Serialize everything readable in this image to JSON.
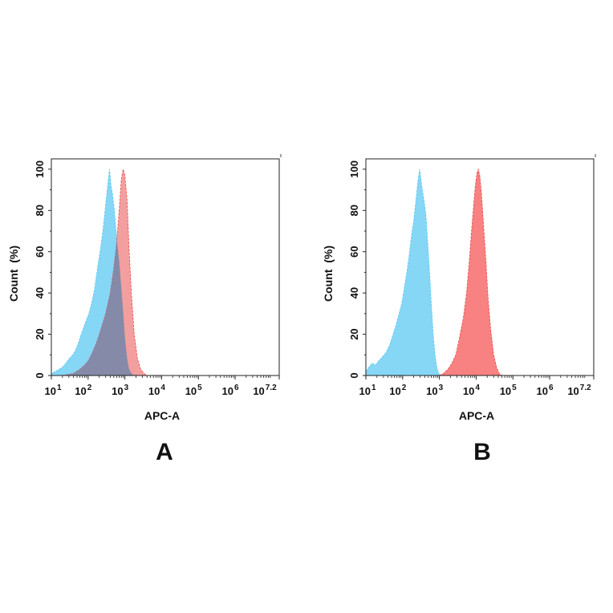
{
  "chart_data": [
    {
      "type": "area",
      "panel_label": "A",
      "xlabel": "APC-A",
      "ylabel": "Count  (%)",
      "x_scale": "log",
      "xlim": [
        10,
        15848932
      ],
      "ylim": [
        0,
        105
      ],
      "x_ticks": [
        {
          "base": "10",
          "exp": "1",
          "value": 10
        },
        {
          "base": "10",
          "exp": "2",
          "value": 100
        },
        {
          "base": "10",
          "exp": "3",
          "value": 1000
        },
        {
          "base": "10",
          "exp": "4",
          "value": 10000
        },
        {
          "base": "10",
          "exp": "5",
          "value": 100000
        },
        {
          "base": "10",
          "exp": "6",
          "value": 1000000
        },
        {
          "base": "10",
          "exp": "7.2",
          "value": 15848932
        }
      ],
      "y_ticks": [
        "0",
        "20",
        "40",
        "60",
        "80",
        "100"
      ],
      "y_tick_values": [
        0,
        20,
        40,
        60,
        80,
        100
      ],
      "grid": false,
      "series": [
        {
          "color": "#5bc8f0",
          "fill": "#7fd4f5",
          "points": [
            [
              10,
              1
            ],
            [
              13,
              2
            ],
            [
              16,
              3
            ],
            [
              20,
              4
            ],
            [
              25,
              6
            ],
            [
              30,
              8
            ],
            [
              38,
              10
            ],
            [
              45,
              12
            ],
            [
              55,
              16
            ],
            [
              65,
              20
            ],
            [
              78,
              24
            ],
            [
              90,
              27
            ],
            [
              105,
              30
            ],
            [
              125,
              35
            ],
            [
              150,
              42
            ],
            [
              180,
              52
            ],
            [
              220,
              62
            ],
            [
              260,
              72
            ],
            [
              300,
              83
            ],
            [
              340,
              92
            ],
            [
              380,
              100
            ],
            [
              420,
              92
            ],
            [
              460,
              88
            ],
            [
              520,
              80
            ],
            [
              600,
              66
            ],
            [
              700,
              55
            ],
            [
              800,
              42
            ],
            [
              900,
              30
            ],
            [
              1000,
              18
            ],
            [
              1150,
              8
            ],
            [
              1300,
              3
            ],
            [
              1500,
              1
            ],
            [
              1800,
              0
            ]
          ]
        },
        {
          "color": "#e84a4a",
          "fill": "#f07a7a",
          "points": [
            [
              20,
              0
            ],
            [
              40,
              1
            ],
            [
              60,
              3
            ],
            [
              80,
              5
            ],
            [
              100,
              7
            ],
            [
              130,
              11
            ],
            [
              170,
              16
            ],
            [
              220,
              22
            ],
            [
              300,
              30
            ],
            [
              400,
              40
            ],
            [
              500,
              52
            ],
            [
              600,
              65
            ],
            [
              700,
              80
            ],
            [
              800,
              95
            ],
            [
              900,
              100
            ],
            [
              1000,
              97
            ],
            [
              1150,
              85
            ],
            [
              1300,
              62
            ],
            [
              1500,
              40
            ],
            [
              1800,
              20
            ],
            [
              2200,
              8
            ],
            [
              2700,
              3
            ],
            [
              3300,
              1
            ],
            [
              4000,
              0
            ]
          ]
        }
      ]
    },
    {
      "type": "area",
      "panel_label": "B",
      "xlabel": "APC-A",
      "ylabel": "Count  (%)",
      "x_scale": "log",
      "xlim": [
        10,
        15848932
      ],
      "ylim": [
        0,
        105
      ],
      "x_ticks": [
        {
          "base": "10",
          "exp": "1",
          "value": 10
        },
        {
          "base": "10",
          "exp": "2",
          "value": 100
        },
        {
          "base": "10",
          "exp": "3",
          "value": 1000
        },
        {
          "base": "10",
          "exp": "4",
          "value": 10000
        },
        {
          "base": "10",
          "exp": "5",
          "value": 100000
        },
        {
          "base": "10",
          "exp": "6",
          "value": 1000000
        },
        {
          "base": "10",
          "exp": "7.2",
          "value": 15848932
        }
      ],
      "y_ticks": [
        "0",
        "20",
        "40",
        "60",
        "80",
        "100"
      ],
      "y_tick_values": [
        0,
        20,
        40,
        60,
        80,
        100
      ],
      "grid": false,
      "series": [
        {
          "color": "#5bc8f0",
          "fill": "#7fd4f5",
          "points": [
            [
              10,
              2
            ],
            [
              12,
              4
            ],
            [
              15,
              6
            ],
            [
              18,
              5
            ],
            [
              22,
              7
            ],
            [
              28,
              9
            ],
            [
              35,
              11
            ],
            [
              45,
              15
            ],
            [
              55,
              20
            ],
            [
              65,
              24
            ],
            [
              80,
              30
            ],
            [
              95,
              35
            ],
            [
              110,
              42
            ],
            [
              130,
              50
            ],
            [
              150,
              58
            ],
            [
              175,
              68
            ],
            [
              200,
              75
            ],
            [
              230,
              85
            ],
            [
              260,
              94
            ],
            [
              290,
              100
            ],
            [
              330,
              92
            ],
            [
              380,
              85
            ],
            [
              430,
              78
            ],
            [
              480,
              65
            ],
            [
              540,
              50
            ],
            [
              600,
              35
            ],
            [
              680,
              20
            ],
            [
              760,
              10
            ],
            [
              850,
              4
            ],
            [
              950,
              1
            ],
            [
              1100,
              0
            ]
          ]
        },
        {
          "color": "#e84a4a",
          "fill": "#f87a7a",
          "points": [
            [
              1000,
              0
            ],
            [
              1300,
              1
            ],
            [
              1700,
              3
            ],
            [
              2200,
              6
            ],
            [
              2800,
              10
            ],
            [
              3500,
              18
            ],
            [
              4500,
              28
            ],
            [
              5500,
              40
            ],
            [
              6500,
              55
            ],
            [
              7500,
              70
            ],
            [
              8500,
              82
            ],
            [
              9500,
              92
            ],
            [
              10500,
              98
            ],
            [
              11500,
              100
            ],
            [
              12500,
              97
            ],
            [
              14000,
              88
            ],
            [
              16000,
              72
            ],
            [
              18500,
              55
            ],
            [
              21000,
              38
            ],
            [
              25000,
              22
            ],
            [
              30000,
              10
            ],
            [
              36000,
              4
            ],
            [
              42000,
              1
            ],
            [
              50000,
              0
            ]
          ]
        }
      ]
    }
  ]
}
